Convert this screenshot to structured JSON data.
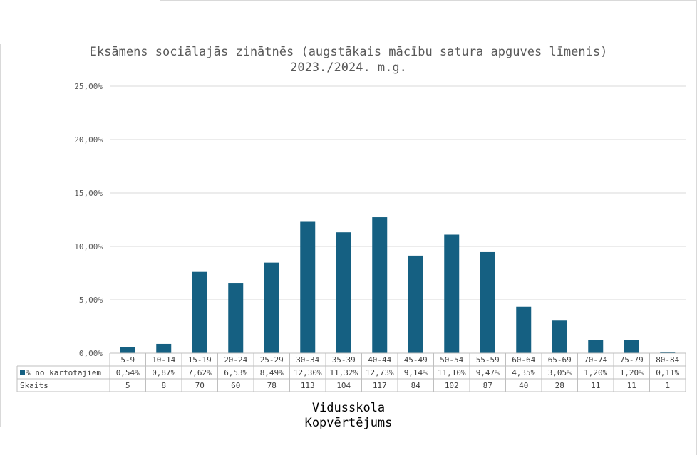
{
  "chart_data": {
    "type": "bar",
    "title": "Eksāmens sociālajās zinātnēs (augstākais mācību satura apguves līmenis) 2023./2024. m.g.",
    "categories": [
      "5-9",
      "10-14",
      "15-19",
      "20-24",
      "25-29",
      "30-34",
      "35-39",
      "40-44",
      "45-49",
      "50-54",
      "55-59",
      "60-64",
      "65-69",
      "70-74",
      "75-79",
      "80-84"
    ],
    "series": [
      {
        "name": "% no kārtotājiem",
        "values": [
          0.54,
          0.87,
          7.62,
          6.53,
          8.49,
          12.3,
          11.32,
          12.73,
          9.14,
          11.1,
          9.47,
          4.35,
          3.05,
          1.2,
          1.2,
          0.11
        ],
        "labels": [
          "0,54%",
          "0,87%",
          "7,62%",
          "6,53%",
          "8,49%",
          "12,30%",
          "11,32%",
          "12,73%",
          "9,14%",
          "11,10%",
          "9,47%",
          "4,35%",
          "3,05%",
          "1,20%",
          "1,20%",
          "0,11%"
        ],
        "color": "#156082"
      }
    ],
    "table_rows": [
      {
        "label": "Skaits",
        "values": [
          "5",
          "8",
          "70",
          "60",
          "78",
          "113",
          "104",
          "117",
          "84",
          "102",
          "87",
          "40",
          "28",
          "11",
          "11",
          "1"
        ]
      }
    ],
    "ylim": [
      0,
      25
    ],
    "yticks": [
      0,
      5,
      10,
      15,
      20,
      25
    ],
    "ytick_labels": [
      "0,00%",
      "5,00%",
      "10,00%",
      "15,00%",
      "20,00%",
      "25,00%"
    ],
    "xlabel": "Vidusskola Kopvērtējums",
    "xlabel_lines": [
      "Vidusskola",
      "Kopvērtējums"
    ],
    "grid": true,
    "legend": "data-table"
  }
}
